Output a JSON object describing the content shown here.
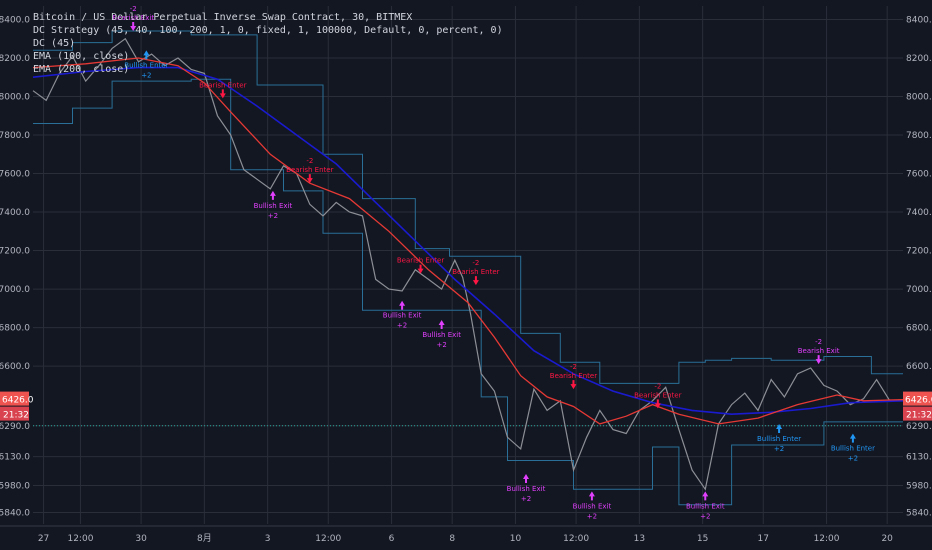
{
  "legend": {
    "title": "Bitcoin / US Dollar Perpetual Inverse Swap Contract, 30, BITMEX",
    "strategy": "DC Strategy (45, 40, 100, 200, 1, 0, fixed, 1, 100000, Default, 0, percent, 0)",
    "dc": "DC (45)",
    "ema100": "EMA (100, close)",
    "ema200": "EMA (200, close)"
  },
  "colors": {
    "background": "#131722",
    "grid": "#2a2e39",
    "ema100": "#e53935",
    "ema200": "#1a1acf",
    "channel": "#2a6f97",
    "channel_fill": "#13283a",
    "price": "#8d8f96",
    "bullish": "#e040fb",
    "bearish": "#ff1744",
    "enter_label": "#2196f3",
    "price_badge": "#ef5350",
    "dotted_line": "#26a69a"
  },
  "chart_data": {
    "type": "line",
    "x_ticks": [
      "27",
      "12:00",
      "30",
      "8月",
      "3",
      "12:00",
      "6",
      "8",
      "10",
      "12:00",
      "13",
      "15",
      "17",
      "12:00",
      "20"
    ],
    "x_tick_t": [
      4,
      18,
      41,
      65,
      89,
      112,
      136,
      159,
      183,
      206,
      230,
      254,
      277,
      301,
      324
    ],
    "y_ticks_left": [
      "8400.0",
      "8200.0",
      "8000.0",
      "7800.0",
      "7600.0",
      "7400.0",
      "7200.0",
      "7000.0",
      "6800.0",
      "6600.0",
      "6290.0",
      "6130.0",
      "5980.0",
      "5840.0"
    ],
    "y_ticks_right": [
      "8400.0",
      "8200.0",
      "8000.0",
      "7800.0",
      "7600.0",
      "7400.0",
      "7200.0",
      "7000.0",
      "6800.0",
      "6600.0",
      "6290.0",
      "6130.0",
      "5980.0",
      "5840.0"
    ],
    "ylim": [
      5780,
      8470
    ],
    "xlim": [
      0,
      330
    ],
    "current_price": "6426.0",
    "countdown": "21:32",
    "dotted_level": 6290,
    "series": [
      {
        "name": "EMA (100, close)",
        "x": [
          0,
          20,
          40,
          55,
          65,
          75,
          90,
          105,
          120,
          135,
          150,
          165,
          175,
          185,
          195,
          205,
          215,
          225,
          235,
          245,
          260,
          275,
          290,
          305,
          315,
          330
        ],
        "values": [
          8150,
          8170,
          8200,
          8160,
          8070,
          7920,
          7700,
          7550,
          7470,
          7300,
          7100,
          6930,
          6750,
          6550,
          6440,
          6390,
          6300,
          6340,
          6400,
          6350,
          6300,
          6330,
          6400,
          6450,
          6420,
          6426
        ]
      },
      {
        "name": "EMA (200, close)",
        "x": [
          0,
          20,
          40,
          55,
          70,
          85,
          100,
          115,
          130,
          145,
          160,
          175,
          190,
          205,
          220,
          235,
          250,
          265,
          280,
          295,
          310,
          330
        ],
        "values": [
          8100,
          8130,
          8150,
          8150,
          8090,
          7950,
          7800,
          7650,
          7450,
          7250,
          7050,
          6870,
          6680,
          6560,
          6470,
          6410,
          6370,
          6350,
          6360,
          6380,
          6410,
          6420
        ]
      },
      {
        "name": "close",
        "x": [
          0,
          5,
          10,
          15,
          20,
          25,
          30,
          35,
          40,
          45,
          50,
          55,
          60,
          65,
          70,
          75,
          80,
          85,
          90,
          95,
          100,
          105,
          110,
          115,
          120,
          125,
          130,
          135,
          140,
          145,
          150,
          155,
          160,
          163,
          166,
          170,
          175,
          180,
          185,
          190,
          195,
          200,
          205,
          210,
          215,
          220,
          225,
          230,
          235,
          240,
          245,
          250,
          255,
          260,
          265,
          270,
          275,
          280,
          285,
          290,
          295,
          300,
          305,
          310,
          315,
          320,
          325,
          330
        ],
        "values": [
          8030,
          7980,
          8120,
          8210,
          8080,
          8160,
          8250,
          8300,
          8180,
          8220,
          8160,
          8200,
          8140,
          8120,
          7900,
          7800,
          7620,
          7570,
          7520,
          7640,
          7600,
          7440,
          7380,
          7450,
          7400,
          7380,
          7050,
          7000,
          6990,
          7100,
          7050,
          7000,
          7150,
          7060,
          6870,
          6560,
          6470,
          6230,
          6170,
          6480,
          6370,
          6420,
          6060,
          6230,
          6370,
          6270,
          6250,
          6370,
          6420,
          6490,
          6270,
          6060,
          5960,
          6300,
          6400,
          6460,
          6370,
          6530,
          6440,
          6560,
          6590,
          6500,
          6470,
          6400,
          6430,
          6530,
          6420,
          6426
        ]
      },
      {
        "name": "DC upper",
        "x": [
          0,
          15,
          30,
          60,
          85,
          110,
          125,
          145,
          158,
          170,
          185,
          200,
          215,
          230,
          245,
          255,
          265,
          280,
          300,
          318,
          330
        ],
        "values": [
          8240,
          8280,
          8340,
          8320,
          8060,
          7700,
          7470,
          7210,
          7170,
          7170,
          6770,
          6620,
          6510,
          6510,
          6620,
          6630,
          6640,
          6630,
          6650,
          6560,
          6560
        ]
      },
      {
        "name": "DC lower",
        "x": [
          0,
          15,
          30,
          60,
          75,
          95,
          110,
          125,
          140,
          160,
          170,
          180,
          190,
          205,
          220,
          235,
          245,
          255,
          265,
          280,
          300,
          318,
          330
        ],
        "values": [
          7860,
          7940,
          8080,
          8090,
          7620,
          7510,
          7290,
          6890,
          6890,
          6890,
          6440,
          6110,
          6110,
          5960,
          5960,
          6180,
          5880,
          5880,
          6190,
          6190,
          6310,
          6310,
          6310
        ]
      }
    ],
    "annotations": [
      {
        "text": "Bullish Exit",
        "t": 91,
        "v": 7520,
        "kind": "exit",
        "sub": "+2"
      },
      {
        "text": "Bearish Enter",
        "t": 105,
        "v": 7540,
        "kind": "enter_bear",
        "sub": "-2"
      },
      {
        "text": "Bearish Enter",
        "t": 72,
        "v": 7980,
        "kind": "enter_bear",
        "sub": ""
      },
      {
        "text": "Bearish Exit",
        "t": 38,
        "v": 8330,
        "kind": "exit_bear",
        "sub": "-2"
      },
      {
        "text": "Bullish Enter",
        "t": 43,
        "v": 8250,
        "kind": "enter_bull",
        "sub": "+2"
      },
      {
        "text": "Bullish Exit",
        "t": 140,
        "v": 6950,
        "kind": "exit",
        "sub": "+2"
      },
      {
        "text": "Bearish Enter",
        "t": 147,
        "v": 7070,
        "kind": "enter_bear",
        "sub": ""
      },
      {
        "text": "Bullish Exit",
        "t": 155,
        "v": 6850,
        "kind": "exit",
        "sub": "+2"
      },
      {
        "text": "Bearish Enter",
        "t": 168,
        "v": 7010,
        "kind": "enter_bear",
        "sub": "-2"
      },
      {
        "text": "Bullish Exit",
        "t": 187,
        "v": 6050,
        "kind": "exit",
        "sub": "+2"
      },
      {
        "text": "Bullish Exit",
        "t": 212,
        "v": 5960,
        "kind": "exit",
        "sub": "+2"
      },
      {
        "text": "Bearish Enter",
        "t": 237,
        "v": 6370,
        "kind": "enter_bear",
        "sub": "-2"
      },
      {
        "text": "Bullish Exit",
        "t": 255,
        "v": 5960,
        "kind": "exit",
        "sub": "+2"
      },
      {
        "text": "Bullish Enter",
        "t": 283,
        "v": 6310,
        "kind": "enter_bull",
        "sub": "+2"
      },
      {
        "text": "Bearish Exit",
        "t": 298,
        "v": 6600,
        "kind": "exit_bear",
        "sub": "-2"
      },
      {
        "text": "Bullish Enter",
        "t": 311,
        "v": 6260,
        "kind": "enter_bull",
        "sub": "+2"
      },
      {
        "text": "Bearish Enter",
        "t": 205,
        "v": 6470,
        "kind": "enter_bear",
        "sub": "-2"
      }
    ]
  }
}
